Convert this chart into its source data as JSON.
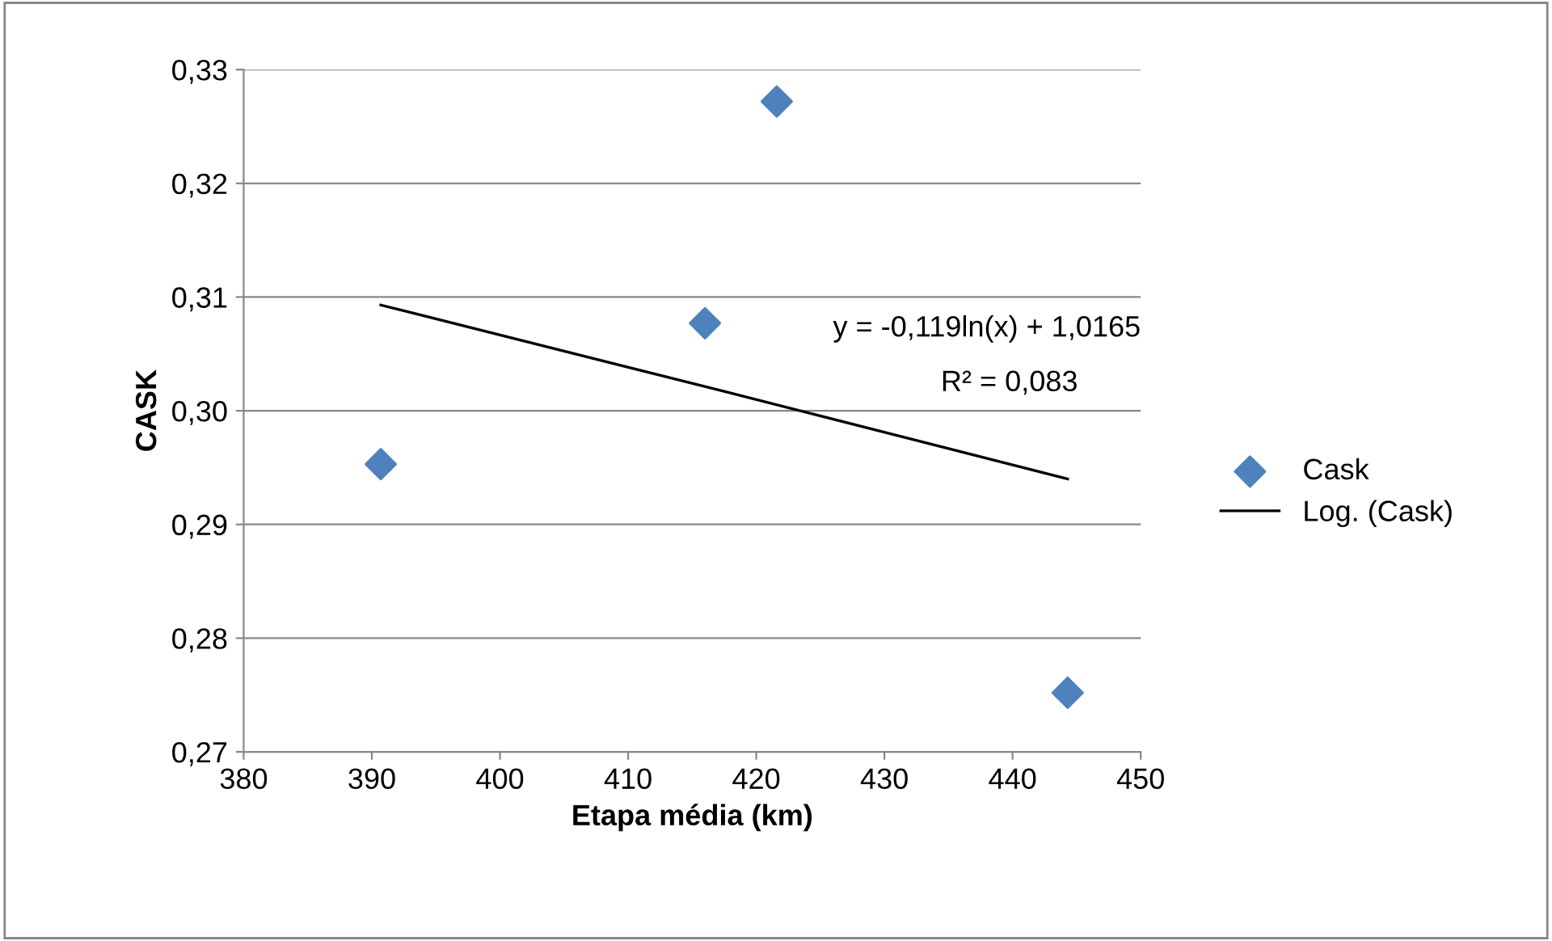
{
  "chart_data": {
    "type": "scatter",
    "xlabel": "Etapa média (km)",
    "ylabel": "CASK",
    "series": [
      {
        "name": "Cask",
        "color": "#4f81bd",
        "marker": "diamond",
        "x": [
          390.7,
          416.0,
          421.6,
          444.3
        ],
        "values": [
          0.2953,
          0.3077,
          0.3272,
          0.2752
        ]
      },
      {
        "name": "Log. (Cask)",
        "type": "line",
        "color": "#000000",
        "marker": "none",
        "line_style": "solid",
        "x": [
          390.7,
          417.5,
          444.3
        ],
        "values": [
          0.3093,
          0.3017,
          0.294
        ]
      }
    ],
    "annotations": [
      "y = -0,119ln(x) + 1,0165",
      "R² = 0,083"
    ],
    "xlim": [
      380,
      450
    ],
    "xticks": [
      {
        "value": 380,
        "label": "380"
      },
      {
        "value": 390,
        "label": "390"
      },
      {
        "value": 400,
        "label": "400"
      },
      {
        "value": 410,
        "label": "410"
      },
      {
        "value": 420,
        "label": "420"
      },
      {
        "value": 430,
        "label": "430"
      },
      {
        "value": 440,
        "label": "440"
      },
      {
        "value": 450,
        "label": "450"
      }
    ],
    "ylim": [
      0.27,
      0.33
    ],
    "yticks": [
      {
        "value": 0.27,
        "label": "0,27"
      },
      {
        "value": 0.28,
        "label": "0,28"
      },
      {
        "value": 0.29,
        "label": "0,29"
      },
      {
        "value": 0.3,
        "label": "0,30"
      },
      {
        "value": 0.31,
        "label": "0,31"
      },
      {
        "value": 0.32,
        "label": "0,32"
      },
      {
        "value": 0.33,
        "label": "0,33"
      }
    ],
    "grid": "y",
    "legend": "right"
  }
}
